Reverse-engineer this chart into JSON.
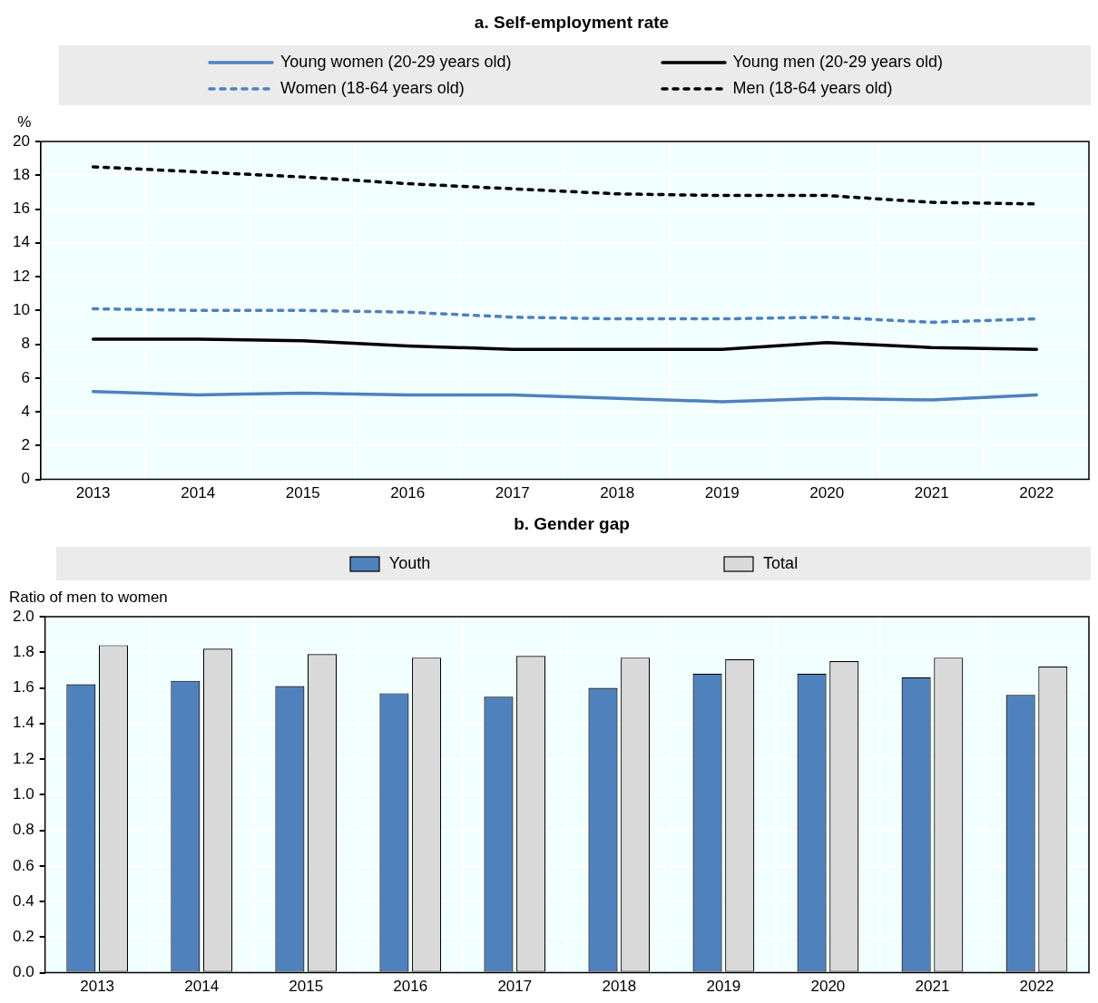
{
  "chart_data": [
    {
      "type": "line",
      "title": "a. Self-employment rate",
      "ylabel": "%",
      "categories": [
        "2013",
        "2014",
        "2015",
        "2016",
        "2017",
        "2018",
        "2019",
        "2020",
        "2021",
        "2022"
      ],
      "ylim": [
        0,
        20
      ],
      "yticks": [
        0,
        2,
        4,
        6,
        8,
        10,
        12,
        14,
        16,
        18,
        20
      ],
      "grid": true,
      "legend": "top",
      "marker": "none",
      "series": [
        {
          "name": "Young women (20-29 years old)",
          "color": "#4f81bd",
          "line_style": "solid",
          "values": [
            5.2,
            5.0,
            5.1,
            5.0,
            5.0,
            4.8,
            4.6,
            4.8,
            4.7,
            5.0
          ]
        },
        {
          "name": "Young men (20-29 years old)",
          "color": "#000000",
          "line_style": "solid",
          "values": [
            8.3,
            8.3,
            8.2,
            7.9,
            7.7,
            7.7,
            7.7,
            8.1,
            7.8,
            7.7
          ]
        },
        {
          "name": "Women (18-64 years old)",
          "color": "#4f81bd",
          "line_style": "dashed",
          "values": [
            10.1,
            10.0,
            10.0,
            9.9,
            9.6,
            9.5,
            9.5,
            9.6,
            9.3,
            9.5
          ]
        },
        {
          "name": "Men (18-64 years old)",
          "color": "#000000",
          "line_style": "dashed",
          "values": [
            18.5,
            18.2,
            17.9,
            17.5,
            17.2,
            16.9,
            16.8,
            16.8,
            16.4,
            16.3
          ]
        }
      ]
    },
    {
      "type": "bar",
      "title": "b. Gender gap",
      "ylabel": "Ratio of men to women",
      "categories": [
        "2013",
        "2014",
        "2015",
        "2016",
        "2017",
        "2018",
        "2019",
        "2020",
        "2021",
        "2022"
      ],
      "ylim": [
        0,
        2
      ],
      "yticks": [
        {
          "value": 0,
          "label": "0.0"
        },
        {
          "value": 0.2,
          "label": "0.2"
        },
        {
          "value": 0.4,
          "label": "0.4"
        },
        {
          "value": 0.6,
          "label": "0.6"
        },
        {
          "value": 0.8,
          "label": "0.8"
        },
        {
          "value": 1,
          "label": "1.0"
        },
        {
          "value": 1.2,
          "label": "1.2"
        },
        {
          "value": 1.4,
          "label": "1.4"
        },
        {
          "value": 1.6,
          "label": "1.6"
        },
        {
          "value": 1.8,
          "label": "1.8"
        },
        {
          "value": 2,
          "label": "2.0"
        }
      ],
      "grid": true,
      "legend": "top",
      "series": [
        {
          "name": "Youth",
          "color": "#4f81bd",
          "values": [
            1.62,
            1.64,
            1.61,
            1.57,
            1.55,
            1.6,
            1.68,
            1.68,
            1.66,
            1.56
          ]
        },
        {
          "name": "Total",
          "color": "#d9d9d9",
          "values": [
            1.84,
            1.82,
            1.79,
            1.77,
            1.78,
            1.77,
            1.76,
            1.75,
            1.77,
            1.72
          ]
        }
      ]
    }
  ]
}
